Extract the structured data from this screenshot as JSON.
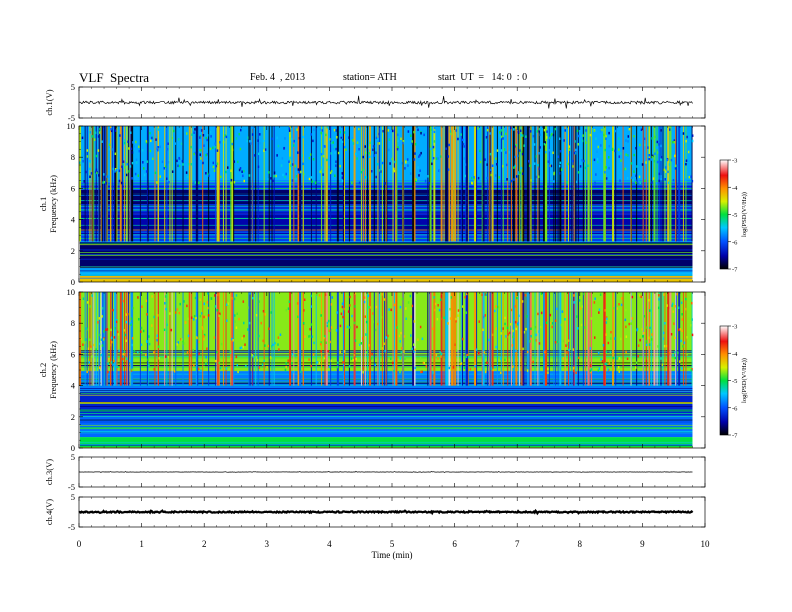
{
  "header": {
    "title": "VLF  Spectra",
    "date": "Feb. 4  , 2013",
    "station": "station= ATH",
    "start": "start  UT  =   14: 0  : 0"
  },
  "chart_data": [
    {
      "type": "line",
      "ylabel": "ch.1(V)",
      "ylim": [
        -5,
        5
      ],
      "yticks": [
        "5",
        "-5"
      ],
      "baseline": 0,
      "noise": 0.45,
      "spike": 1.8
    },
    {
      "type": "heatmap",
      "ylabel": "ch.1\nFrequency (kHz)",
      "ylim": [
        0,
        10
      ],
      "yticks": [
        "0",
        "2",
        "4",
        "6",
        "8",
        "10"
      ],
      "colorbar": {
        "label": "log(PSD(V²/Hz))",
        "ticks": [
          "-3",
          "-4",
          "-5",
          "-6",
          "-7"
        ],
        "range": [
          -7,
          -3
        ]
      },
      "bands": [
        {
          "from": 0.0,
          "to": 0.4,
          "level": -4.3
        },
        {
          "from": 0.4,
          "to": 0.9,
          "level": -5.6
        },
        {
          "from": 0.9,
          "to": 2.5,
          "level": -6.7
        },
        {
          "from": 2.5,
          "to": 3.0,
          "level": -6.1
        },
        {
          "from": 3.0,
          "to": 4.4,
          "level": -6.5
        },
        {
          "from": 4.4,
          "to": 5.0,
          "level": -6.2
        },
        {
          "from": 5.0,
          "to": 5.9,
          "level": -6.7
        },
        {
          "from": 5.9,
          "to": 6.4,
          "level": -6.0
        },
        {
          "from": 6.4,
          "to": 10.0,
          "level": -5.6
        }
      ]
    },
    {
      "type": "heatmap",
      "ylabel": "ch.2\nFrequency (kHz)",
      "ylim": [
        0,
        10
      ],
      "yticks": [
        "0",
        "2",
        "4",
        "6",
        "8",
        "10"
      ],
      "colorbar": {
        "label": "log(PSD(V²/Hz))",
        "ticks": [
          "-3",
          "-4",
          "-5",
          "-6",
          "-7"
        ],
        "range": [
          -7,
          -3
        ]
      },
      "bands": [
        {
          "from": 0.0,
          "to": 0.7,
          "level": -5.0
        },
        {
          "from": 0.7,
          "to": 2.0,
          "level": -5.9
        },
        {
          "from": 2.0,
          "to": 3.6,
          "level": -6.3
        },
        {
          "from": 3.6,
          "to": 4.9,
          "level": -5.8
        },
        {
          "from": 4.9,
          "to": 10.0,
          "level": -4.7
        }
      ]
    },
    {
      "type": "line",
      "ylabel": "ch.3(V)",
      "ylim": [
        -5,
        5
      ],
      "yticks": [
        "5",
        "-5"
      ],
      "baseline": 0,
      "noise": 0.05,
      "spike": 0.2
    },
    {
      "type": "line",
      "ylabel": "ch.4(V)",
      "ylim": [
        -5,
        5
      ],
      "yticks": [
        "5",
        "-5"
      ],
      "baseline": 0,
      "noise": 0.22,
      "spike": 0.3
    }
  ],
  "xaxis": {
    "label": "Time  (min)",
    "xlim": [
      0,
      10
    ],
    "data_end": 9.8,
    "ticks": [
      "0",
      "1",
      "2",
      "3",
      "4",
      "5",
      "6",
      "7",
      "8",
      "9",
      "10"
    ]
  }
}
